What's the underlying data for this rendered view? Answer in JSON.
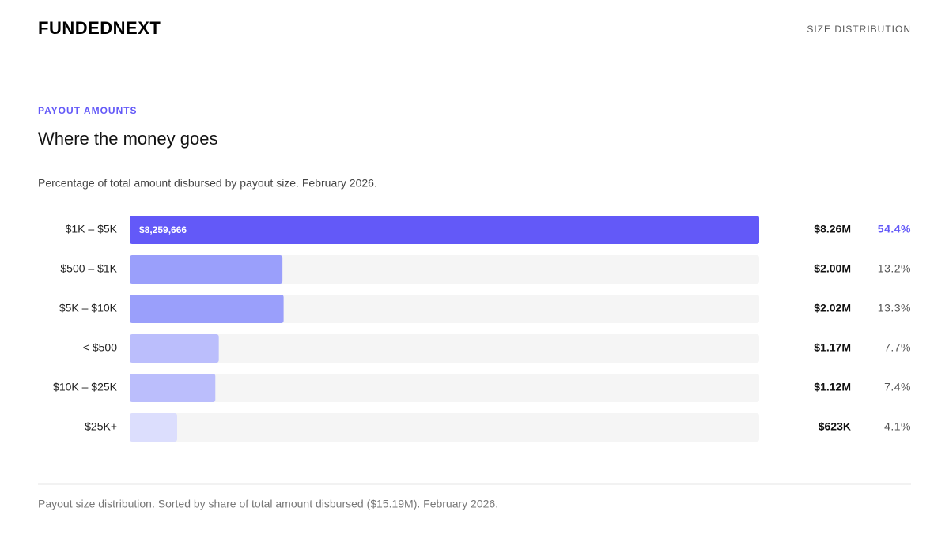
{
  "header": {
    "brand": "FUNDEDNEXT",
    "section": "SIZE DISTRIBUTION"
  },
  "chart_data": {
    "type": "bar",
    "orientation": "horizontal",
    "eyebrow": "PAYOUT AMOUNTS",
    "title": "Where the money goes",
    "subtitle": "Percentage of total amount disbursed by payout size. February 2026.",
    "categories": [
      "$1K – $5K",
      "$500 – $1K",
      "$5K – $10K",
      "< $500",
      "$10K – $25K",
      "$25K+"
    ],
    "values": [
      54.4,
      13.2,
      13.3,
      7.7,
      7.4,
      4.1
    ],
    "value_labels": [
      "54.4%",
      "13.2%",
      "13.3%",
      "7.7%",
      "7.4%",
      "4.1%"
    ],
    "amounts": [
      8259666,
      2000000,
      2020000,
      1170000,
      1120000,
      623000
    ],
    "amount_labels": [
      "$8.26M",
      "$2.00M",
      "$2.02M",
      "$1.17M",
      "$1.12M",
      "$623K"
    ],
    "inner_labels": [
      "$8,259,666",
      null,
      null,
      null,
      null,
      null
    ],
    "colors": [
      "#6359f8",
      "#9a9ffb",
      "#9a9ffb",
      "#bbbefc",
      "#bbbefc",
      "#dcdefd"
    ],
    "highlight_color": "#6359f8",
    "xlim": [
      0,
      54.4
    ]
  },
  "footer": {
    "note": "Payout size distribution. Sorted by share of total amount disbursed ($15.19M). February 2026."
  }
}
